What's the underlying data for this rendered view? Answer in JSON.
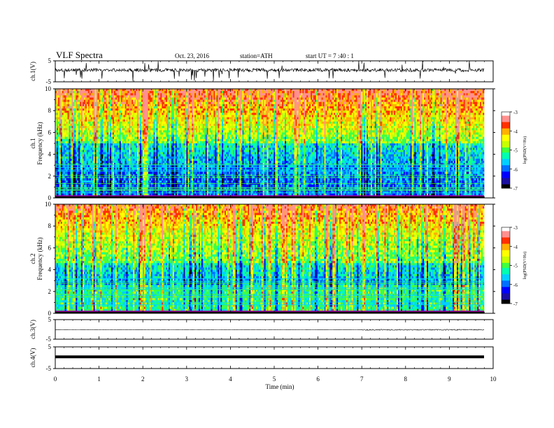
{
  "header": {
    "title": "VLF  Spectra",
    "date": "Oct. 23, 2016",
    "station": "station=ATH",
    "start_ut": "start  UT =   7  :40 : 1"
  },
  "chart_data": [
    {
      "type": "line",
      "ylabel": "ch.1(V)",
      "ylim": [
        -5,
        5
      ],
      "yticks": [
        "5",
        "-5"
      ],
      "xlim": [
        0,
        10
      ],
      "description": "noisy waveform centred near +0.5 V with impulsive spikes",
      "colors": {
        "line": "#000000"
      }
    },
    {
      "type": "heatmap",
      "ylabel_top": "ch.1",
      "ylabel": "Frequency  (kHz)",
      "ylim": [
        0,
        10
      ],
      "yticks": [
        "0",
        "2",
        "4",
        "6",
        "8",
        "10"
      ],
      "xlim": [
        0,
        9.8
      ],
      "colorbar": {
        "label": "log(PSD(V²/Hz)",
        "range": [
          -7,
          -3
        ],
        "ticks": [
          "-3",
          "-4",
          "-5",
          "-6",
          "-7"
        ]
      }
    },
    {
      "type": "heatmap",
      "ylabel_top": "ch.2",
      "ylabel": "Frequency  (kHz)",
      "ylim": [
        0,
        10
      ],
      "yticks": [
        "0",
        "2",
        "4",
        "6",
        "8",
        "10"
      ],
      "xlim": [
        0,
        9.8
      ],
      "colorbar": {
        "label": "log(PSD(V²/Hz)",
        "range": [
          -7,
          -3
        ],
        "ticks": [
          "-3",
          "-4",
          "-5",
          "-6",
          "-7"
        ]
      }
    },
    {
      "type": "line",
      "ylabel": "ch.3(V)",
      "ylim": [
        -5,
        5
      ],
      "yticks": [
        "5",
        "-5"
      ],
      "xlim": [
        0,
        10
      ],
      "description": "flat trace near 0 V with slight noise after 7 min"
    },
    {
      "type": "line",
      "ylabel": "ch.4(V)",
      "ylim": [
        -5,
        5
      ],
      "yticks": [
        "5",
        "-5"
      ],
      "xlim": [
        0,
        10
      ],
      "description": "thick flat trace near 0 V"
    }
  ],
  "xaxis": {
    "label": "Time  (min)",
    "ticks": [
      "0",
      "1",
      "2",
      "3",
      "4",
      "5",
      "6",
      "7",
      "8",
      "9",
      "10"
    ],
    "range": [
      0,
      10
    ]
  },
  "colormap": [
    "#000000",
    "#1a0fa0",
    "#0000ff",
    "#0070ff",
    "#00d0ff",
    "#00ffb0",
    "#40ff40",
    "#c8ff00",
    "#ffff00",
    "#ffb000",
    "#ff3000",
    "#ff9090",
    "#ffffff"
  ]
}
